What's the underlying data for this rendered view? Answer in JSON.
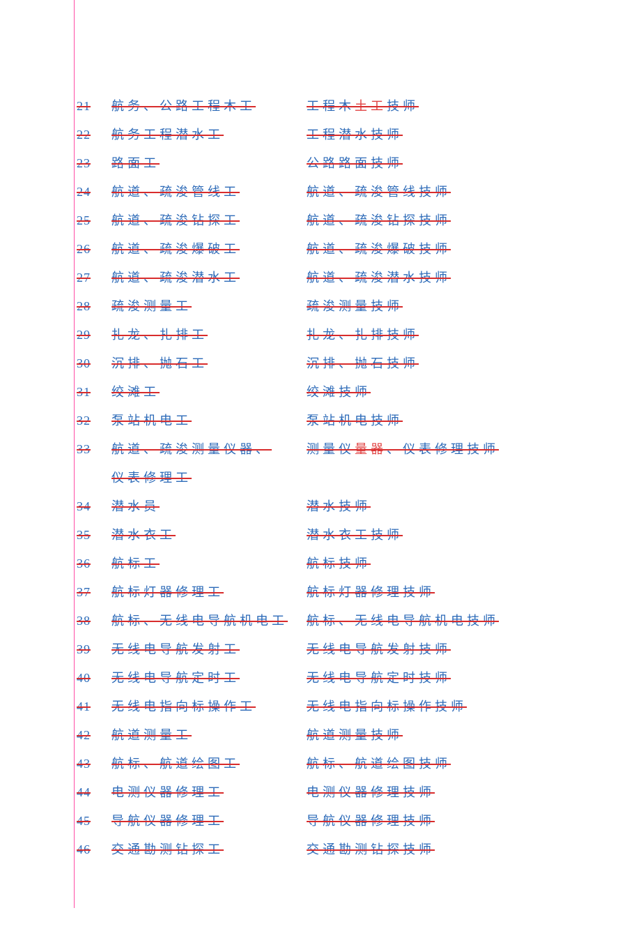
{
  "document": {
    "text_color": "#2e6bb8",
    "strike_color": "#d82c2c",
    "margin_line_color": "#ff007f",
    "insert_color": "#e04040",
    "background_color": "#ffffff",
    "font_size": 18,
    "letter_spacing": 5,
    "rows": [
      {
        "num": "21",
        "left": "航务、公路工程木工",
        "right_pre": "工程木",
        "right_ins": "土工",
        "right_post": "技师"
      },
      {
        "num": "22",
        "left": "航务工程潜水工",
        "right": "工程潜水技师"
      },
      {
        "num": "23",
        "left": "路面工",
        "right": "公路路面技师"
      },
      {
        "num": "24",
        "left": "航道、疏浚管线工",
        "right": "航道、疏浚管线技师"
      },
      {
        "num": "25",
        "left": "航道、疏浚钻探工",
        "right": "航道、疏浚钻探技师"
      },
      {
        "num": "26",
        "left": "航道、疏浚爆破工",
        "right": "航道、疏浚爆破技师"
      },
      {
        "num": "27",
        "left": "航道、疏浚潜水工",
        "right": "航道、疏浚潜水技师"
      },
      {
        "num": "28",
        "left": "疏浚测量工",
        "right": "疏浚测量技师"
      },
      {
        "num": "29",
        "left": "扎龙、扎排工",
        "right": "扎龙、扎排技师"
      },
      {
        "num": "30",
        "left": "沉排、抛石工",
        "right": "沉排、抛石技师"
      },
      {
        "num": "31",
        "left": "绞滩工",
        "right": "绞滩技师"
      },
      {
        "num": "32",
        "left": "泵站机电工",
        "right": "泵站机电技师"
      },
      {
        "num": "33",
        "left": "航道、疏浚测量仪器、",
        "left_wrap": "仪表修理工",
        "right_pre": "测量仪",
        "right_ins": "量器",
        "right_post": "、仪表修理技师"
      },
      {
        "num": "34",
        "left": "潜水员",
        "right": "潜水技师"
      },
      {
        "num": "35",
        "left": "潜水衣工",
        "right": "潜水衣工技师"
      },
      {
        "num": "36",
        "left": "航标工",
        "right": "航标技师"
      },
      {
        "num": "37",
        "left": "航标灯器修理工",
        "right": "航标灯器修理技师"
      },
      {
        "num": "38",
        "left": "航标、无线电导航机电工",
        "right": "航标、无线电导航机电技师"
      },
      {
        "num": "39",
        "left": "无线电导航发射工",
        "right": "无线电导航发射技师"
      },
      {
        "num": "40",
        "left": "无线电导航定时工",
        "right": "无线电导航定时技师"
      },
      {
        "num": "41",
        "left": "无线电指向标操作工",
        "right": "无线电指向标操作技师"
      },
      {
        "num": "42",
        "left": "航道测量工",
        "right": "航道测量技师"
      },
      {
        "num": "43",
        "left": "航标、航道绘图工",
        "right": "航标、航道绘图技师"
      },
      {
        "num": "44",
        "left": "电测仪器修理工",
        "right": "电测仪器修理技师"
      },
      {
        "num": "45",
        "left": "导航仪器修理工",
        "right": "导航仪器修理技师"
      },
      {
        "num": "46",
        "left": "交通勘测钻探工",
        "right": "交通勘测钻探技师"
      }
    ]
  }
}
